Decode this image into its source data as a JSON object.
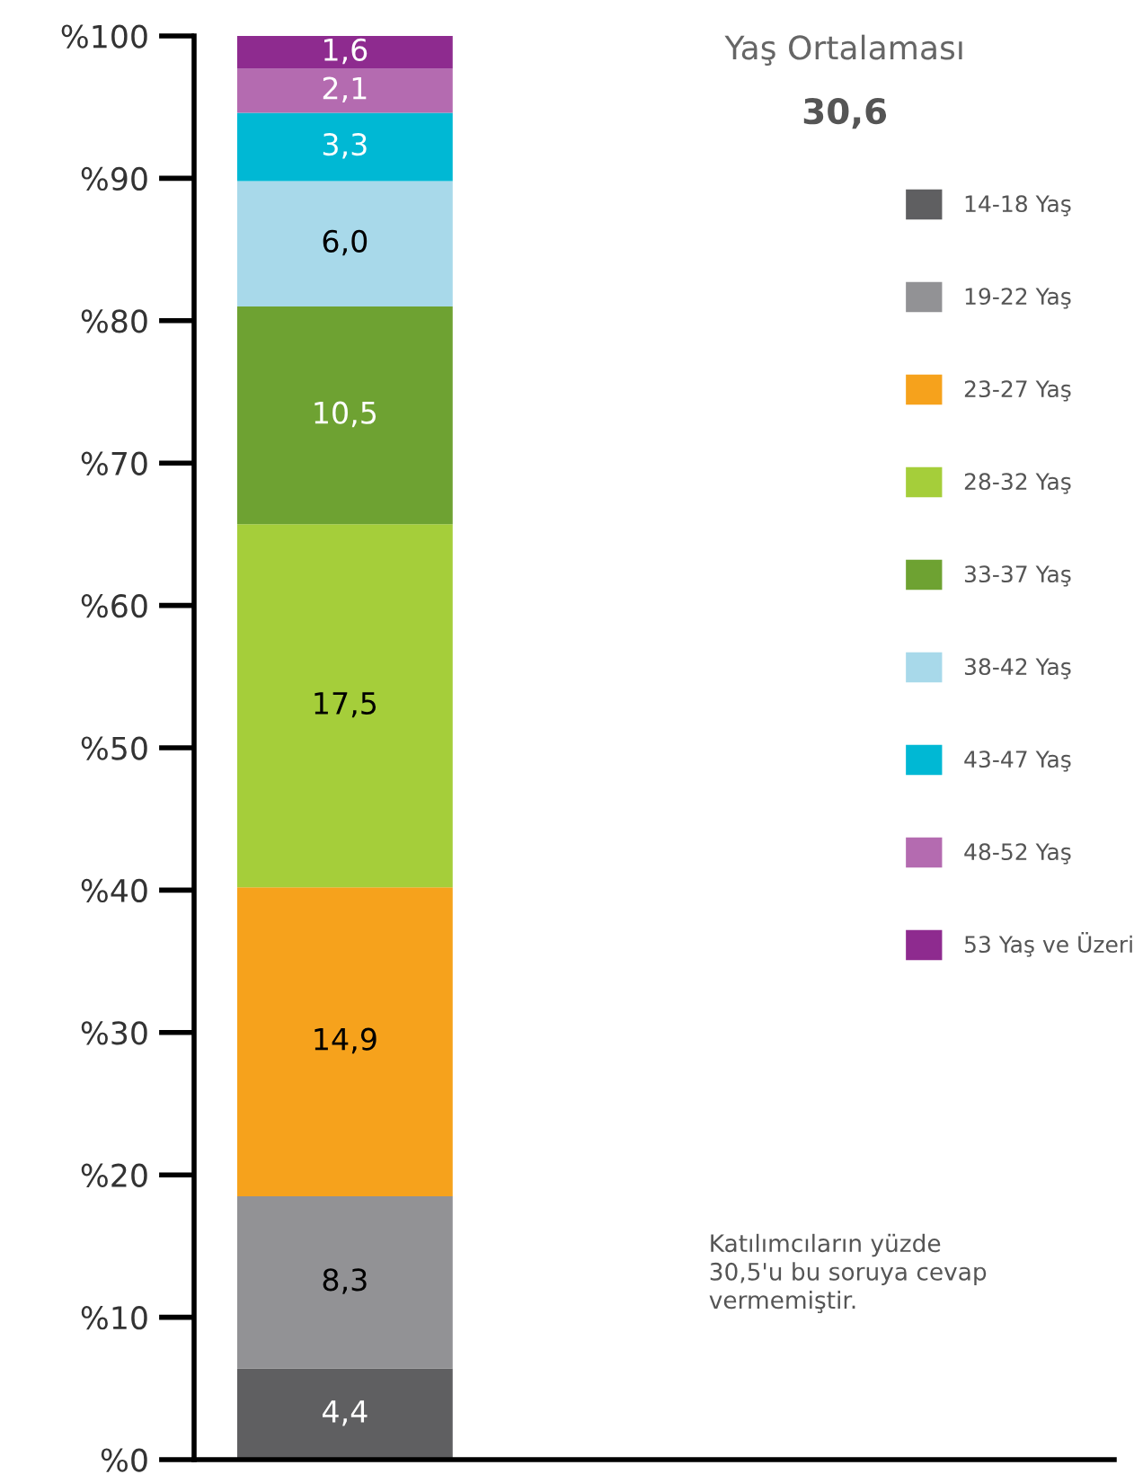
{
  "chart_data": {
    "type": "bar",
    "stacked": true,
    "categories": [
      null
    ],
    "series": [
      {
        "name": "14-18 Yaş",
        "color": "#5f5f61",
        "values": [
          6.4
        ]
      },
      {
        "name": "19-22 Yaş",
        "color": "#929295",
        "values": [
          12.1
        ]
      },
      {
        "name": "23-27 Yaş",
        "color": "#f6a21c",
        "values": [
          21.7
        ]
      },
      {
        "name": "28-32 Yaş",
        "color": "#a5ce3a",
        "values": [
          25.5
        ]
      },
      {
        "name": "33-37 Yaş",
        "color": "#6ea232",
        "values": [
          15.3
        ]
      },
      {
        "name": "38-42 Yaş",
        "color": "#a8d9ea",
        "values": [
          8.8
        ]
      },
      {
        "name": "43-47 Yaş",
        "color": "#00b8d4",
        "values": [
          4.8
        ]
      },
      {
        "name": "48-52 Yaş",
        "color": "#b46bb0",
        "values": [
          3.1
        ]
      },
      {
        "name": "53 Yaş ve Üzeri",
        "color": "#8e2b8f",
        "values": [
          2.3
        ]
      }
    ],
    "ylim": [
      0,
      100
    ],
    "yticks": [
      {
        "value": 0,
        "label": "%0"
      },
      {
        "value": 10,
        "label": "%10"
      },
      {
        "value": 20,
        "label": "%20"
      },
      {
        "value": 30,
        "label": "%30"
      },
      {
        "value": 40,
        "label": "%40"
      },
      {
        "value": 50,
        "label": "%50"
      },
      {
        "value": 60,
        "label": "%60"
      },
      {
        "value": 70,
        "label": "%70"
      },
      {
        "value": 80,
        "label": "%80"
      },
      {
        "value": 90,
        "label": "%90"
      },
      {
        "value": 100,
        "label": "%100"
      }
    ],
    "tick_labels": "y",
    "legend_title": "Yaş Ortalaması",
    "annotations": [
      "4,4",
      "8,3",
      "14,9",
      "17,5",
      "10,5",
      "6,0",
      "3,3",
      "2,1",
      "1,6",
      "30,6",
      "Katılımcıların yüzde 30,5'u bu soruya cevap vermemiştir."
    ],
    "legend": "right",
    "grid": false
  }
}
